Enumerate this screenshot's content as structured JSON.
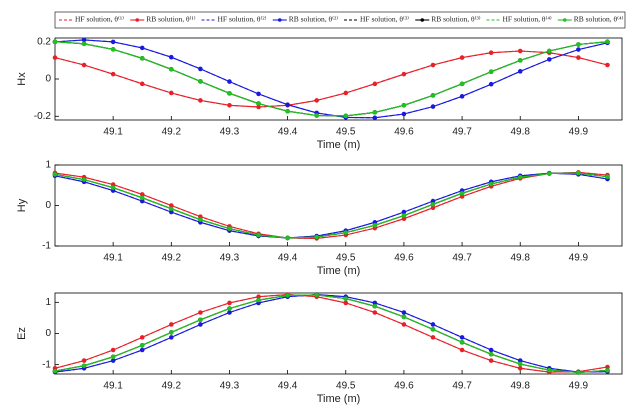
{
  "chart_data": [
    {
      "type": "line",
      "legend": "top",
      "y_label": "Hx",
      "x_label": "Time (m)",
      "x": [
        49,
        49.05,
        49.1,
        49.15,
        49.2,
        49.25,
        49.3,
        49.35,
        49.4,
        49.45,
        49.5,
        49.55,
        49.6,
        49.65,
        49.7,
        49.75,
        49.8,
        49.85,
        49.9,
        49.95
      ],
      "xlim": [
        49,
        49.975
      ],
      "xticks": [
        49.1,
        49.2,
        49.3,
        49.4,
        49.5,
        49.6,
        49.7,
        49.8,
        49.9
      ],
      "ylim": [
        -0.22,
        0.22
      ],
      "yticks": [
        -0.2,
        0,
        0.2
      ],
      "series": [
        {
          "name": "HF solution, θ⁽¹⁾",
          "color": "#e8202a",
          "style": "dashed",
          "values": [
            0.115,
            0.075,
            0.026,
            -0.026,
            -0.075,
            -0.115,
            -0.141,
            -0.15,
            -0.141,
            -0.115,
            -0.075,
            -0.026,
            0.026,
            0.075,
            0.115,
            0.141,
            0.15,
            0.141,
            0.115,
            0.075
          ]
        },
        {
          "name": "RB solution, θ⁽¹⁾",
          "color": "#e8202a",
          "style": "solid",
          "marker": true,
          "values": [
            0.115,
            0.075,
            0.026,
            -0.026,
            -0.075,
            -0.115,
            -0.141,
            -0.15,
            -0.141,
            -0.115,
            -0.075,
            -0.026,
            0.026,
            0.075,
            0.115,
            0.141,
            0.15,
            0.141,
            0.115,
            0.075
          ]
        },
        {
          "name": "HF solution, θ⁽²⁾",
          "color": "#1a1adf",
          "style": "dashed",
          "values": [
            0.199,
            0.21,
            0.199,
            0.167,
            0.117,
            0.054,
            -0.014,
            -0.08,
            -0.138,
            -0.182,
            -0.206,
            -0.208,
            -0.188,
            -0.148,
            -0.093,
            -0.028,
            0.041,
            0.105,
            0.158,
            0.194
          ]
        },
        {
          "name": "RB solution, θ⁽²⁾",
          "color": "#1a1adf",
          "style": "solid",
          "marker": true,
          "values": [
            0.199,
            0.21,
            0.199,
            0.167,
            0.117,
            0.054,
            -0.014,
            -0.08,
            -0.138,
            -0.182,
            -0.206,
            -0.208,
            -0.188,
            -0.148,
            -0.093,
            -0.028,
            0.041,
            0.105,
            0.158,
            0.194
          ]
        },
        {
          "name": "HF solution, θ⁽³⁾",
          "color": "#000000",
          "style": "dashed",
          "values": [
            0.2,
            0.189,
            0.159,
            0.111,
            0.052,
            -0.013,
            -0.077,
            -0.132,
            -0.173,
            -0.196,
            -0.198,
            -0.179,
            -0.141,
            -0.088,
            -0.026,
            0.039,
            0.1,
            0.15,
            0.185,
            0.2
          ]
        },
        {
          "name": "RB solution, θ⁽³⁾",
          "color": "#000000",
          "style": "solid",
          "marker": true,
          "values": [
            0.2,
            0.189,
            0.159,
            0.111,
            0.052,
            -0.013,
            -0.077,
            -0.132,
            -0.173,
            -0.196,
            -0.198,
            -0.179,
            -0.141,
            -0.088,
            -0.026,
            0.039,
            0.1,
            0.15,
            0.185,
            0.2
          ]
        },
        {
          "name": "HF solution, θ⁽⁴⁾",
          "color": "#22c022",
          "style": "dashed",
          "values": [
            0.2,
            0.189,
            0.159,
            0.111,
            0.052,
            -0.013,
            -0.077,
            -0.132,
            -0.173,
            -0.196,
            -0.198,
            -0.179,
            -0.141,
            -0.088,
            -0.026,
            0.039,
            0.1,
            0.15,
            0.185,
            0.2
          ]
        },
        {
          "name": "RB solution, θ⁽⁴⁾",
          "color": "#22c022",
          "style": "solid",
          "marker": true,
          "values": [
            0.2,
            0.189,
            0.159,
            0.111,
            0.052,
            -0.013,
            -0.077,
            -0.132,
            -0.173,
            -0.196,
            -0.198,
            -0.179,
            -0.141,
            -0.088,
            -0.026,
            0.039,
            0.1,
            0.15,
            0.185,
            0.2
          ]
        }
      ]
    },
    {
      "type": "line",
      "y_label": "Hy",
      "x_label": "Time (m)",
      "x": [
        49,
        49.05,
        49.1,
        49.15,
        49.2,
        49.25,
        49.3,
        49.35,
        49.4,
        49.45,
        49.5,
        49.55,
        49.6,
        49.65,
        49.7,
        49.75,
        49.8,
        49.85,
        49.9,
        49.95
      ],
      "xlim": [
        49,
        49.975
      ],
      "xticks": [
        49.1,
        49.2,
        49.3,
        49.4,
        49.5,
        49.6,
        49.7,
        49.8,
        49.9
      ],
      "ylim": [
        -1,
        1
      ],
      "yticks": [
        -1,
        0,
        1
      ],
      "series": [
        {
          "color": "#e8202a",
          "style": "dashed",
          "values": [
            0.803,
            0.7,
            0.517,
            0.275,
            0,
            -0.275,
            -0.517,
            -0.7,
            -0.803,
            -0.813,
            -0.728,
            -0.559,
            -0.327,
            -0.056,
            0.222,
            0.473,
            0.67,
            0.79,
            0.818,
            0.752
          ]
        },
        {
          "color": "#e8202a",
          "style": "solid",
          "marker": true,
          "values": [
            0.803,
            0.7,
            0.517,
            0.275,
            0,
            -0.275,
            -0.517,
            -0.7,
            -0.803,
            -0.813,
            -0.728,
            -0.559,
            -0.327,
            -0.056,
            0.222,
            0.473,
            0.67,
            0.79,
            0.818,
            0.752
          ]
        },
        {
          "color": "#1a1adf",
          "style": "dashed",
          "values": [
            0.734,
            0.584,
            0.368,
            0.109,
            -0.162,
            -0.416,
            -0.621,
            -0.754,
            -0.8,
            -0.754,
            -0.621,
            -0.416,
            -0.162,
            0.109,
            0.368,
            0.584,
            0.734,
            0.798,
            0.77,
            0.654
          ]
        },
        {
          "color": "#1a1adf",
          "style": "solid",
          "marker": true,
          "values": [
            0.734,
            0.584,
            0.368,
            0.109,
            -0.162,
            -0.416,
            -0.621,
            -0.754,
            -0.8,
            -0.754,
            -0.621,
            -0.416,
            -0.162,
            0.109,
            0.368,
            0.584,
            0.734,
            0.798,
            0.77,
            0.654
          ]
        },
        {
          "color": "#000000",
          "style": "dashed",
          "values": [
            0.77,
            0.64,
            0.44,
            0.19,
            -0.08,
            -0.35,
            -0.57,
            -0.73,
            -0.8,
            -0.78,
            -0.67,
            -0.49,
            -0.25,
            0.03,
            0.3,
            0.53,
            0.7,
            0.79,
            0.8,
            0.71
          ]
        },
        {
          "color": "#000000",
          "style": "solid",
          "marker": true,
          "values": [
            0.77,
            0.64,
            0.44,
            0.19,
            -0.08,
            -0.35,
            -0.57,
            -0.73,
            -0.8,
            -0.78,
            -0.67,
            -0.49,
            -0.25,
            0.03,
            0.3,
            0.53,
            0.7,
            0.79,
            0.8,
            0.71
          ]
        },
        {
          "color": "#22c022",
          "style": "dashed",
          "values": [
            0.77,
            0.64,
            0.44,
            0.19,
            -0.08,
            -0.35,
            -0.57,
            -0.73,
            -0.8,
            -0.78,
            -0.67,
            -0.49,
            -0.25,
            0.03,
            0.3,
            0.53,
            0.7,
            0.79,
            0.8,
            0.71
          ]
        },
        {
          "color": "#22c022",
          "style": "solid",
          "marker": true,
          "values": [
            0.77,
            0.64,
            0.44,
            0.19,
            -0.08,
            -0.35,
            -0.57,
            -0.73,
            -0.8,
            -0.78,
            -0.67,
            -0.49,
            -0.25,
            0.03,
            0.3,
            0.53,
            0.7,
            0.79,
            0.8,
            0.71
          ]
        }
      ]
    },
    {
      "type": "line",
      "y_label": "Ez",
      "x_label": "Time (m)",
      "x": [
        49,
        49.05,
        49.1,
        49.15,
        49.2,
        49.25,
        49.3,
        49.35,
        49.4,
        49.45,
        49.5,
        49.55,
        49.6,
        49.65,
        49.7,
        49.75,
        49.8,
        49.85,
        49.9,
        49.95
      ],
      "xlim": [
        49,
        49.975
      ],
      "xticks": [
        49.1,
        49.2,
        49.3,
        49.4,
        49.5,
        49.6,
        49.7,
        49.8,
        49.9
      ],
      "ylim": [
        -1.3,
        1.3
      ],
      "yticks": [
        -1,
        0,
        1
      ],
      "series": [
        {
          "color": "#e8202a",
          "style": "dashed",
          "values": [
            -1.116,
            -0.869,
            -0.53,
            -0.124,
            0.29,
            0.674,
            0.981,
            1.181,
            1.25,
            1.181,
            0.981,
            0.674,
            0.29,
            -0.124,
            -0.53,
            -0.869,
            -1.116,
            -1.239,
            -1.225,
            -1.076
          ]
        },
        {
          "color": "#e8202a",
          "style": "solid",
          "marker": true,
          "values": [
            -1.116,
            -0.869,
            -0.53,
            -0.124,
            0.29,
            0.674,
            0.981,
            1.181,
            1.25,
            1.181,
            0.981,
            0.674,
            0.29,
            -0.124,
            -0.53,
            -0.869,
            -1.116,
            -1.239,
            -1.225,
            -1.076
          ]
        },
        {
          "color": "#1a1adf",
          "style": "dashed",
          "values": [
            -1.239,
            -1.116,
            -0.869,
            -0.53,
            -0.124,
            0.29,
            0.674,
            0.981,
            1.181,
            1.25,
            1.181,
            0.981,
            0.674,
            0.29,
            -0.124,
            -0.53,
            -0.869,
            -1.116,
            -1.239,
            -1.225
          ]
        },
        {
          "color": "#1a1adf",
          "style": "solid",
          "marker": true,
          "values": [
            -1.239,
            -1.116,
            -0.869,
            -0.53,
            -0.124,
            0.29,
            0.674,
            0.981,
            1.181,
            1.25,
            1.181,
            0.981,
            0.674,
            0.29,
            -0.124,
            -0.53,
            -0.869,
            -1.116,
            -1.239,
            -1.225
          ]
        },
        {
          "color": "#000000",
          "style": "dashed",
          "values": [
            -1.208,
            -1.035,
            -0.748,
            -0.378,
            0.035,
            0.441,
            0.801,
            1.071,
            1.224,
            1.24,
            1.119,
            0.875,
            0.533,
            0.133,
            -0.284,
            -0.666,
            -0.978,
            -1.179,
            -1.25,
            -1.184
          ]
        },
        {
          "color": "#000000",
          "style": "solid",
          "marker": true,
          "values": [
            -1.208,
            -1.035,
            -0.748,
            -0.378,
            0.035,
            0.441,
            0.801,
            1.071,
            1.224,
            1.24,
            1.119,
            0.875,
            0.533,
            0.133,
            -0.284,
            -0.666,
            -0.978,
            -1.179,
            -1.25,
            -1.184
          ]
        },
        {
          "color": "#22c022",
          "style": "dashed",
          "values": [
            -1.208,
            -1.035,
            -0.748,
            -0.378,
            0.035,
            0.441,
            0.801,
            1.071,
            1.224,
            1.24,
            1.119,
            0.875,
            0.533,
            0.133,
            -0.284,
            -0.666,
            -0.978,
            -1.179,
            -1.25,
            -1.184
          ]
        },
        {
          "color": "#22c022",
          "style": "solid",
          "marker": true,
          "values": [
            -1.208,
            -1.035,
            -0.748,
            -0.378,
            0.035,
            0.441,
            0.801,
            1.071,
            1.224,
            1.24,
            1.119,
            0.875,
            0.533,
            0.133,
            -0.284,
            -0.666,
            -0.978,
            -1.179,
            -1.25,
            -1.184
          ]
        }
      ]
    }
  ]
}
